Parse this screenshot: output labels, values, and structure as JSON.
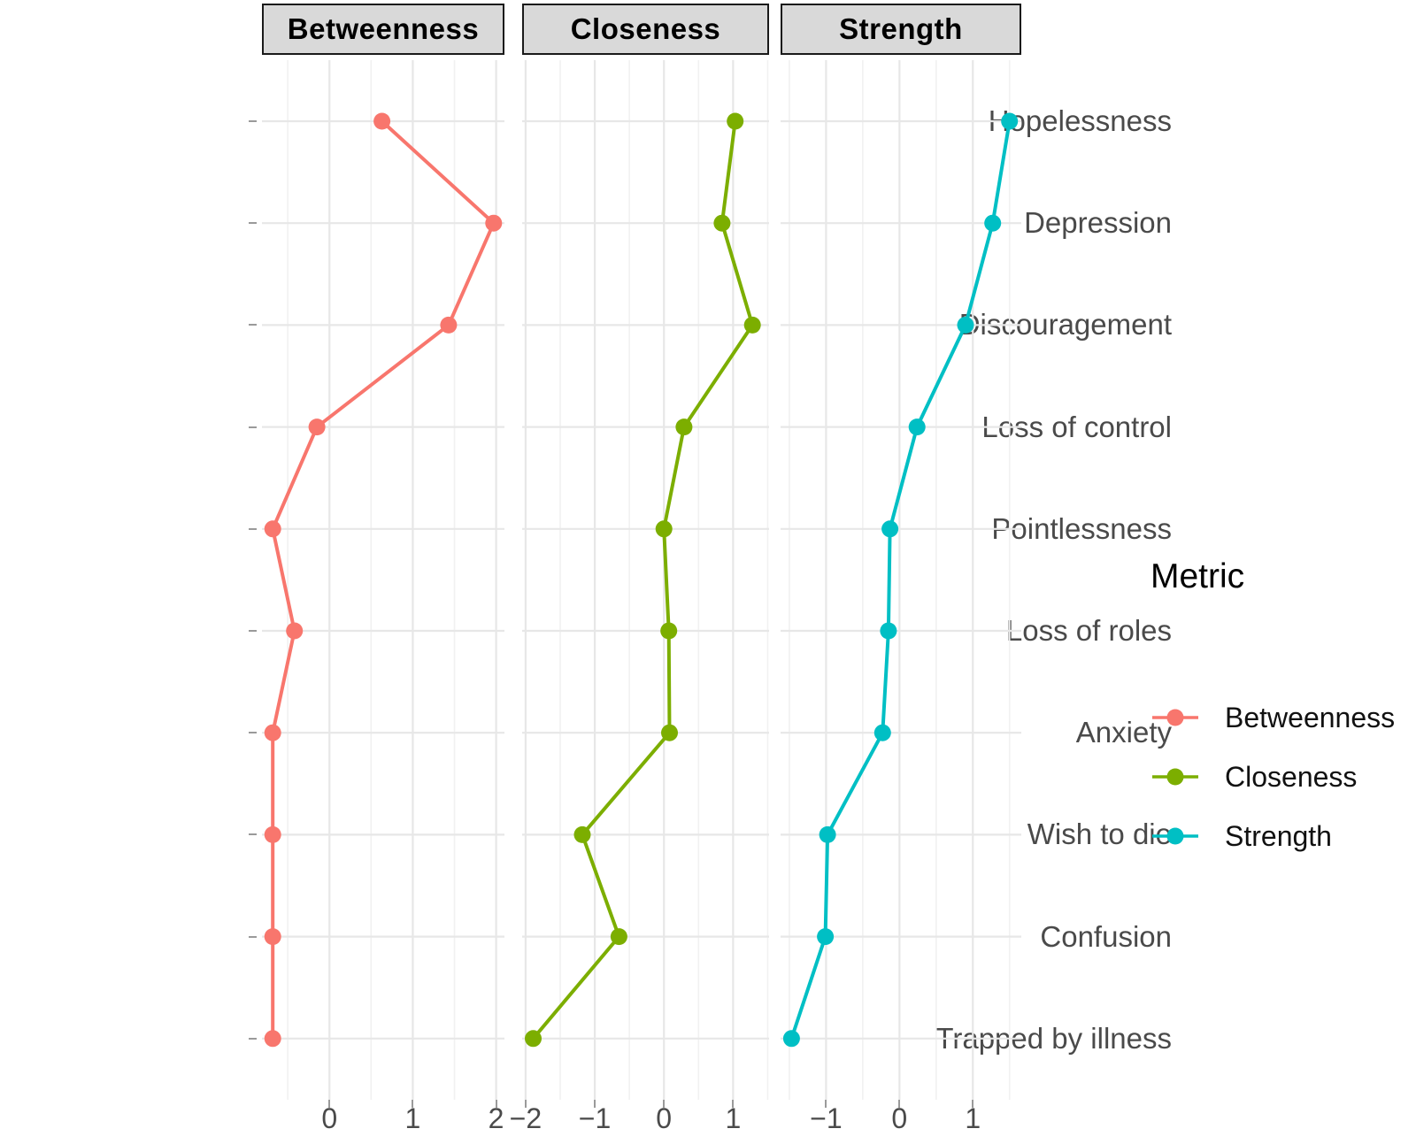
{
  "chart_data": {
    "type": "line",
    "description": "Faceted dot-line chart of standardized network centrality metrics per symptom",
    "facets": [
      "Betweenness",
      "Closeness",
      "Strength"
    ],
    "categories": [
      "Hopelessness",
      "Depression",
      "Discouragement",
      "Loss of control",
      "Pointlessness",
      "Loss of roles",
      "Anxiety",
      "Wish to die",
      "Confusion",
      "Trapped by illness"
    ],
    "panels": [
      {
        "name": "Betweenness",
        "color": "#F8766D",
        "values": [
          0.63,
          1.97,
          1.43,
          -0.15,
          -0.68,
          -0.42,
          -0.68,
          -0.68,
          -0.68,
          -0.68
        ],
        "xlim": [
          -0.81,
          2.1
        ],
        "ticks": [
          0,
          1,
          2
        ],
        "minor_ticks": [
          -0.5,
          0.5,
          1.5
        ]
      },
      {
        "name": "Closeness",
        "color": "#7CAE00",
        "values": [
          1.03,
          0.84,
          1.28,
          0.29,
          0.0,
          0.07,
          0.08,
          -1.18,
          -0.65,
          -1.89
        ],
        "xlim": [
          -2.05,
          1.52
        ],
        "ticks": [
          -2,
          -1,
          0,
          1
        ],
        "minor_ticks": [
          -1.5,
          -0.5,
          0.5,
          1.5
        ]
      },
      {
        "name": "Strength",
        "color": "#00BFC4",
        "values": [
          1.5,
          1.27,
          0.9,
          0.24,
          -0.13,
          -0.15,
          -0.23,
          -0.98,
          -1.01,
          -1.47
        ],
        "xlim": [
          -1.62,
          1.66
        ],
        "ticks": [
          -1,
          0,
          1
        ],
        "minor_ticks": [
          -1.5,
          -0.5,
          0.5,
          1.5
        ]
      }
    ],
    "legend": {
      "title": "Metric",
      "entries": [
        {
          "label": "Betweenness",
          "color": "#F8766D"
        },
        {
          "label": "Closeness",
          "color": "#7CAE00"
        },
        {
          "label": "Strength",
          "color": "#00BFC4"
        }
      ]
    },
    "styles": {
      "background": "#FFFFFF",
      "grid_major": "#E7E7E7",
      "grid_minor": "#F1F1F1",
      "axis_text": "#4A4A4A",
      "strip_fill": "#D9D9D9",
      "strip_border": "#1A1A1A"
    }
  }
}
